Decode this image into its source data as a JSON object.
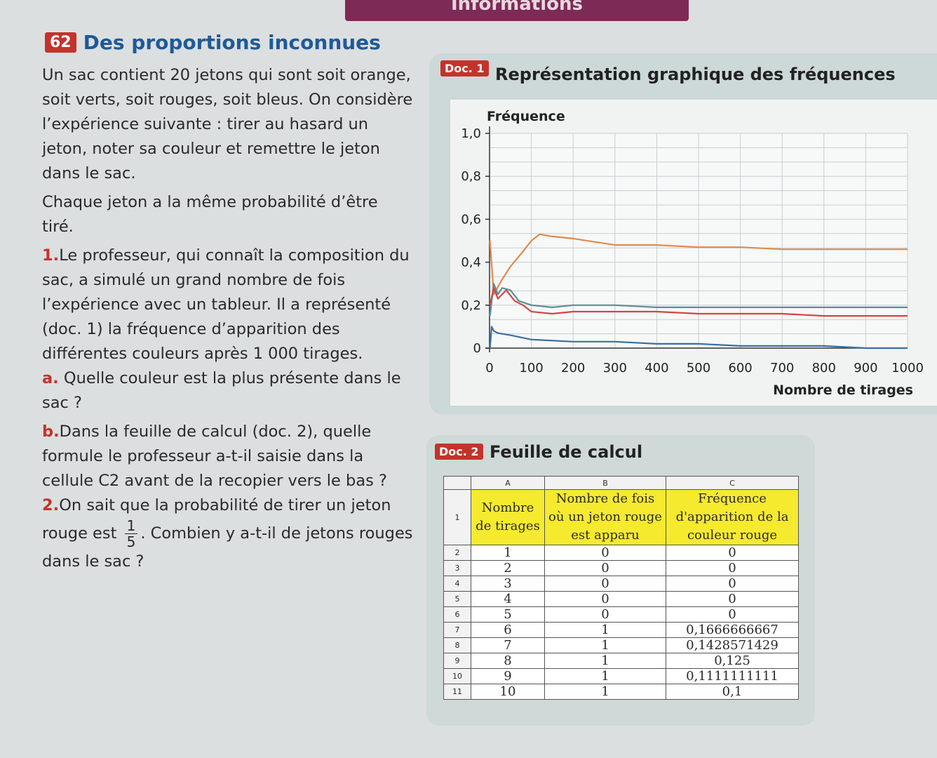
{
  "top_banner": "Informations",
  "exercise": {
    "number": "62",
    "title": "Des proportions inconnues",
    "intro": "Un sac contient 20 jetons qui sont soit orange, soit verts, soit rouges, soit bleus. On considère l’expérience suivante : tirer au hasard un jeton, noter sa couleur et remettre le jeton dans le sac.",
    "intro2": "Chaque jeton a la même probabilité d’être tiré.",
    "q1_num": "1.",
    "q1": "Le professeur, qui connaît la composition du sac, a simulé un grand nombre de fois l’expérience avec un tableur. Il a représenté (doc. 1) la fréquence d’apparition des différentes couleurs après 1 000 tirages.",
    "qa_num": "a.",
    "qa": "Quelle couleur est la plus présente dans le sac ?",
    "qb_num": "b.",
    "qb": "Dans la feuille de calcul (doc. 2), quelle formule le professeur a-t-il saisie dans la cellule C2 avant de la recopier vers le bas ?",
    "q2_num": "2.",
    "q2_before": "On sait que la probabilité de tirer un jeton rouge est",
    "q2_frac_num": "1",
    "q2_frac_den": "5",
    "q2_after": ". Combien y a-t-il de jetons rouges dans le sac ?"
  },
  "doc1": {
    "badge": "Doc. 1",
    "title": "Représentation graphique des fréquences"
  },
  "doc2": {
    "badge": "Doc. 2",
    "title": "Feuille de calcul",
    "col_letters": [
      "A",
      "B",
      "C"
    ],
    "header_row_num": "1",
    "headers": [
      "Nombre de tirages",
      "Nombre de fois où un jeton rouge est apparu",
      "Fréquence d'apparition de la couleur rouge"
    ],
    "rows": [
      {
        "n": "2",
        "a": "1",
        "b": "0",
        "c": "0"
      },
      {
        "n": "3",
        "a": "2",
        "b": "0",
        "c": "0"
      },
      {
        "n": "4",
        "a": "3",
        "b": "0",
        "c": "0"
      },
      {
        "n": "5",
        "a": "4",
        "b": "0",
        "c": "0"
      },
      {
        "n": "6",
        "a": "5",
        "b": "0",
        "c": "0"
      },
      {
        "n": "7",
        "a": "6",
        "b": "1",
        "c": "0,1666666667"
      },
      {
        "n": "8",
        "a": "7",
        "b": "1",
        "c": "0,1428571429"
      },
      {
        "n": "9",
        "a": "8",
        "b": "1",
        "c": "0,125"
      },
      {
        "n": "10",
        "a": "9",
        "b": "1",
        "c": "0,1111111111"
      },
      {
        "n": "11",
        "a": "10",
        "b": "1",
        "c": "0,1"
      }
    ]
  },
  "chart_data": {
    "type": "line",
    "ylabel": "Fréquence",
    "xlabel": "Nombre de tirages",
    "xlim": [
      0,
      1000
    ],
    "ylim": [
      0,
      1
    ],
    "x_ticks": [
      "0",
      "100",
      "200",
      "300",
      "400",
      "500",
      "600",
      "700",
      "800",
      "900",
      "1000"
    ],
    "y_ticks": [
      "0",
      "0,2",
      "0,4",
      "0,6",
      "0,8",
      "1,0"
    ],
    "grid": true,
    "series": [
      {
        "color": "#e08a4c",
        "x": [
          1,
          10,
          30,
          50,
          80,
          100,
          120,
          150,
          200,
          300,
          400,
          500,
          600,
          700,
          800,
          900,
          1000
        ],
        "y": [
          0.5,
          0.25,
          0.32,
          0.38,
          0.45,
          0.5,
          0.53,
          0.52,
          0.51,
          0.48,
          0.48,
          0.47,
          0.47,
          0.46,
          0.46,
          0.46,
          0.46
        ]
      },
      {
        "color": "#5b8f99",
        "x": [
          1,
          10,
          20,
          30,
          50,
          70,
          100,
          150,
          200,
          300,
          400,
          500,
          600,
          700,
          800,
          900,
          1000
        ],
        "y": [
          0.15,
          0.3,
          0.25,
          0.28,
          0.27,
          0.22,
          0.2,
          0.19,
          0.2,
          0.2,
          0.19,
          0.19,
          0.19,
          0.19,
          0.19,
          0.19,
          0.19
        ]
      },
      {
        "color": "#d2473d",
        "x": [
          1,
          10,
          20,
          40,
          60,
          80,
          100,
          150,
          200,
          300,
          400,
          500,
          600,
          700,
          800,
          900,
          1000
        ],
        "y": [
          0.2,
          0.28,
          0.23,
          0.27,
          0.22,
          0.2,
          0.17,
          0.16,
          0.17,
          0.17,
          0.17,
          0.16,
          0.16,
          0.16,
          0.15,
          0.15,
          0.15
        ]
      },
      {
        "color": "#3b6fa3",
        "x": [
          1,
          5,
          10,
          20,
          50,
          100,
          200,
          300,
          400,
          500,
          600,
          700,
          800,
          900,
          1000
        ],
        "y": [
          0.0,
          0.1,
          0.08,
          0.07,
          0.06,
          0.04,
          0.03,
          0.03,
          0.02,
          0.02,
          0.01,
          0.01,
          0.01,
          0.0,
          0.0
        ]
      }
    ]
  }
}
